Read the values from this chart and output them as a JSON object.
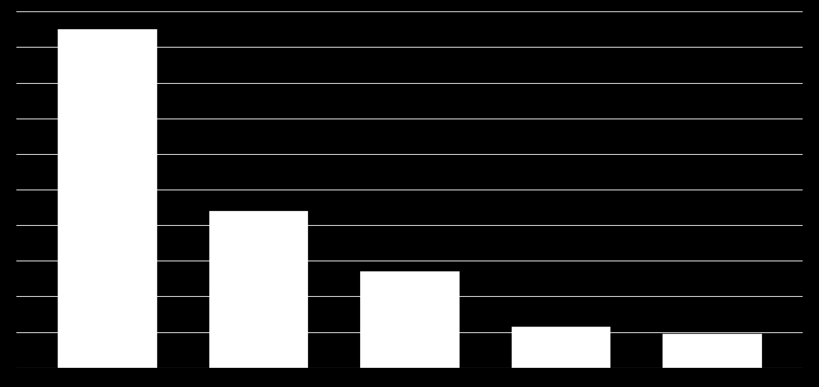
{
  "categories": [
    "",
    "",
    "",
    "",
    ""
  ],
  "values": [
    950,
    440,
    270,
    115,
    95
  ],
  "bar_color": "#ffffff",
  "background_color": "#000000",
  "grid_color": "#ffffff",
  "ylim": [
    0,
    1000
  ],
  "yticks": [
    0,
    100,
    200,
    300,
    400,
    500,
    600,
    700,
    800,
    900,
    1000
  ],
  "bar_width": 0.65,
  "grid_linewidth": 0.8,
  "figsize": [
    11.51,
    5.45
  ],
  "dpi": 100
}
